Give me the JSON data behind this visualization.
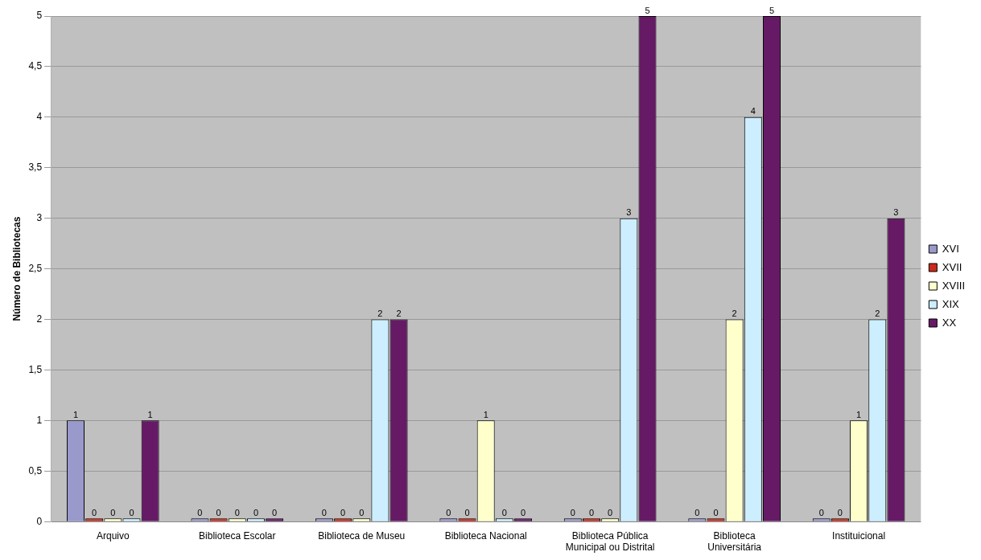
{
  "chart_data": {
    "type": "bar",
    "ylabel": "Número de Bibliotecas",
    "categories": [
      "Arquivo",
      "Biblioteca Escolar",
      "Biblioteca de Museu",
      "Biblioteca Nacional",
      "Biblioteca Pública Municipal ou Distrital",
      "Biblioteca Universitária",
      "Instituicional"
    ],
    "series": [
      {
        "name": "XVI",
        "color": "#9999cc",
        "values": [
          1,
          0,
          0,
          0,
          0,
          0,
          0
        ]
      },
      {
        "name": "XVII",
        "color": "#cc2a1a",
        "values": [
          0,
          0,
          0,
          0,
          0,
          0,
          0
        ]
      },
      {
        "name": "XVIII",
        "color": "#ffffcc",
        "values": [
          0,
          0,
          0,
          1,
          0,
          2,
          1
        ]
      },
      {
        "name": "XIX",
        "color": "#cceeff",
        "values": [
          0,
          0,
          2,
          0,
          3,
          4,
          2
        ]
      },
      {
        "name": "XX",
        "color": "#661a66",
        "values": [
          1,
          0,
          2,
          0,
          5,
          5,
          3
        ]
      }
    ],
    "ylim": [
      0,
      5
    ],
    "yticks": [
      0,
      {
        "value": 0.5,
        "label": "0,5"
      },
      1,
      {
        "value": 1.5,
        "label": "1,5"
      },
      2,
      {
        "value": 2.5,
        "label": "2,5"
      },
      3,
      {
        "value": 3.5,
        "label": "3,5"
      },
      4,
      {
        "value": 4.5,
        "label": "4,5"
      },
      5
    ],
    "grid": "y",
    "legend": "right",
    "data_labels": true
  }
}
